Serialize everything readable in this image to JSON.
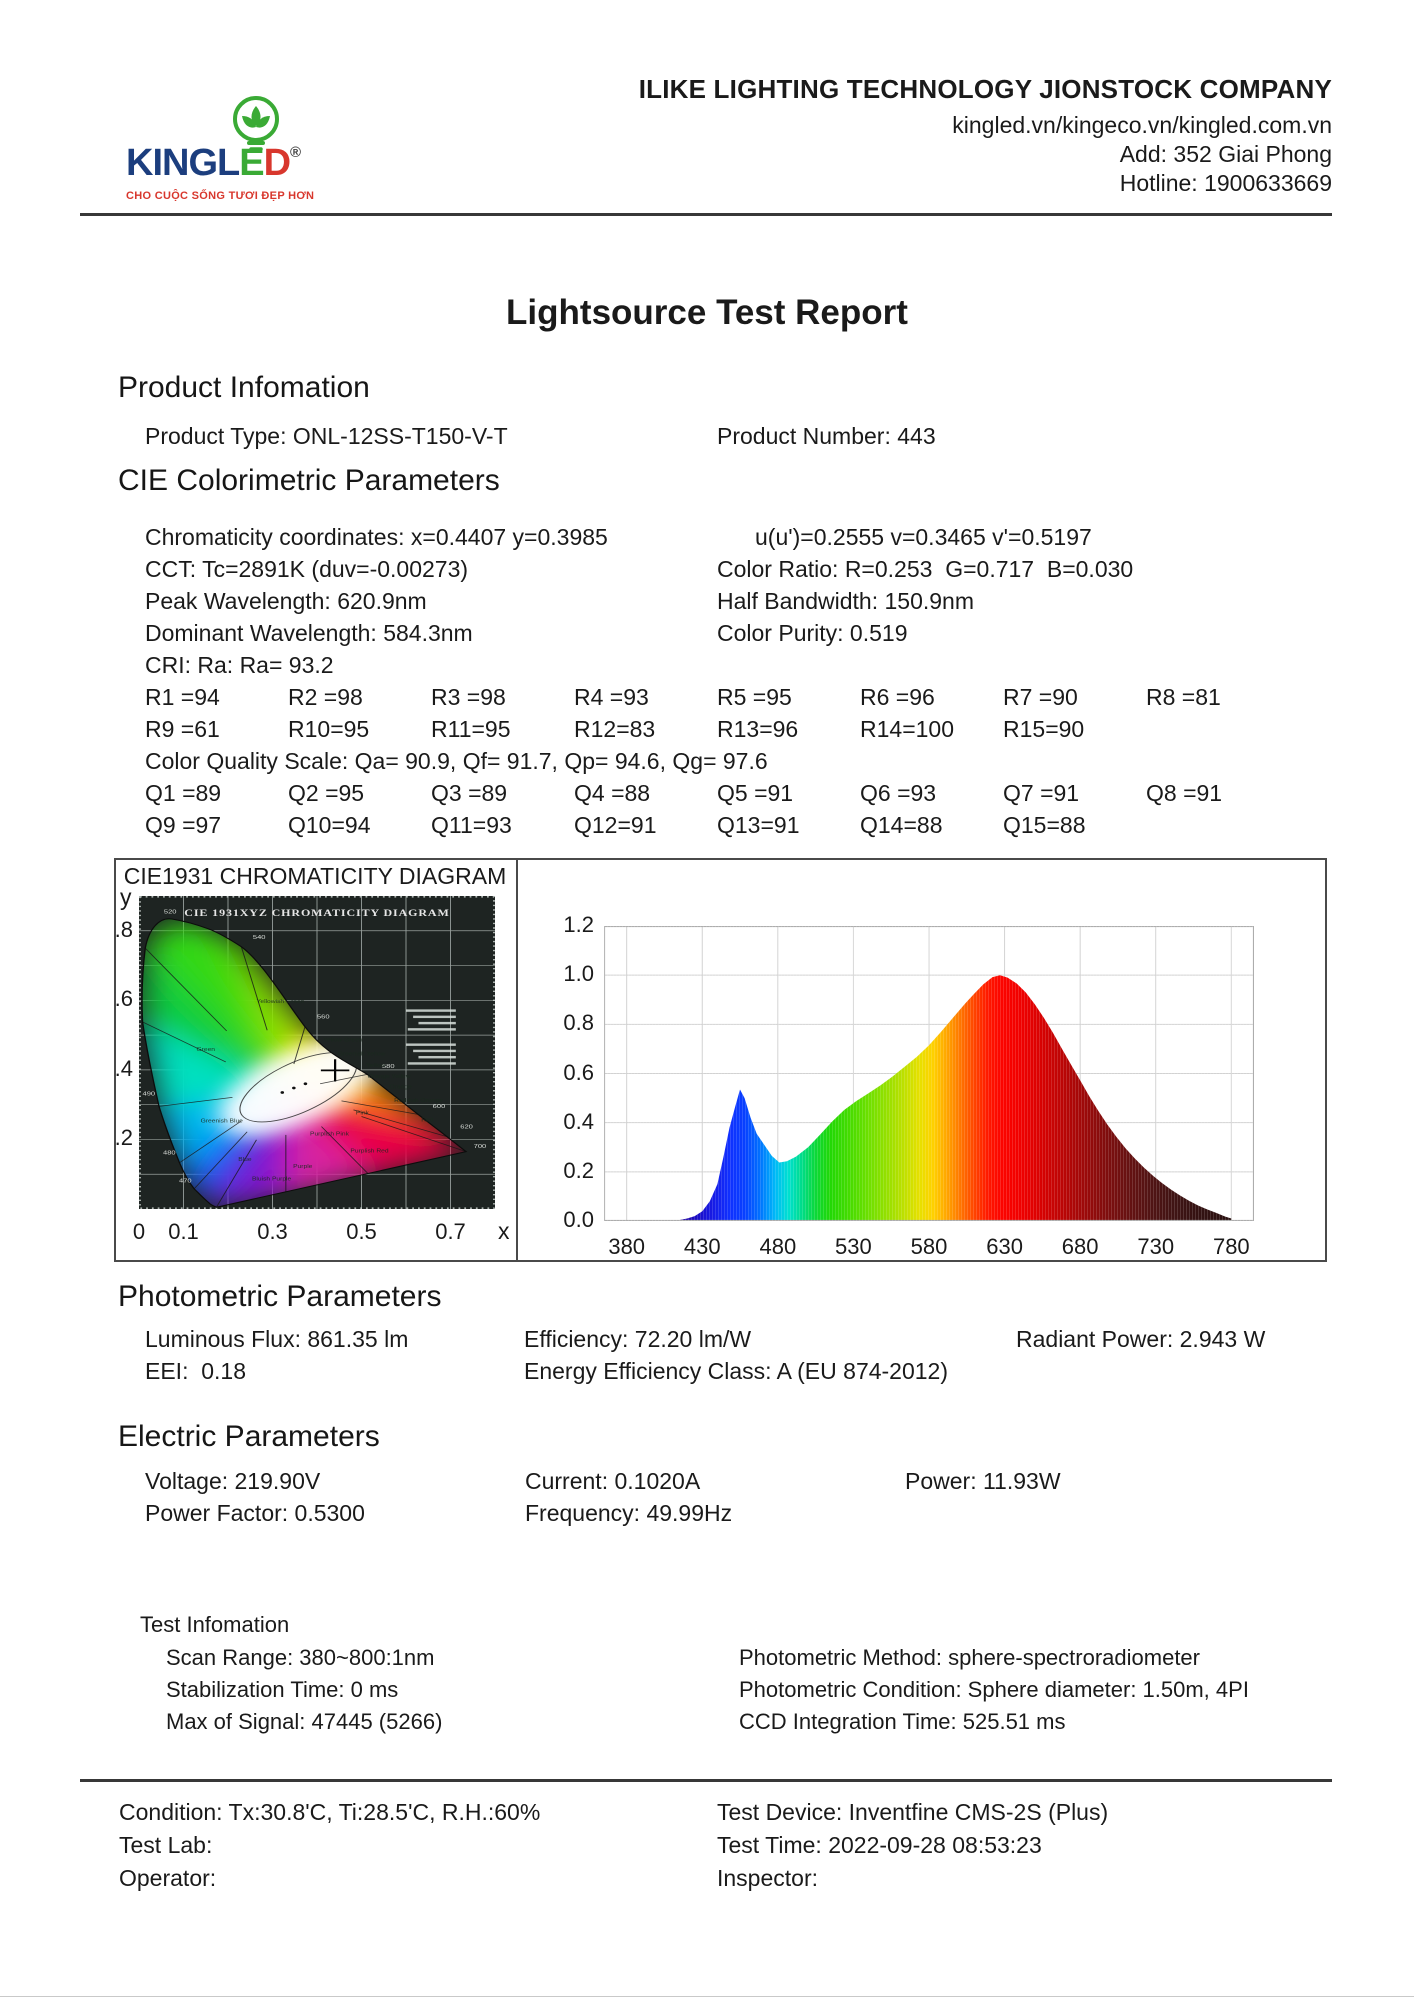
{
  "header": {
    "company_name": "ILIKE LIGHTING TECHNOLOGY JIONSTOCK COMPANY",
    "website": "kingled.vn/kingeco.vn/kingled.com.vn",
    "address": "Add: 352 Giai Phong",
    "hotline": "Hotline: 1900633669",
    "logo": {
      "wordmark_prefix": "KINGL",
      "wordmark_e": "E",
      "wordmark_d": "D",
      "registered_mark": "®",
      "tagline": "CHO CUỘC SỐNG TƯƠI ĐẸP HƠN",
      "brand_colors": {
        "navy": "#1c3e7e",
        "green": "#3aaa35",
        "red": "#d8372d"
      }
    }
  },
  "title": "Lightsource Test Report",
  "product": {
    "heading": "Product Infomation",
    "type": "Product Type: ONL-12SS-T150-V-T",
    "number": "Product Number: 443"
  },
  "cie_params": {
    "heading": "CIE Colorimetric Parameters",
    "chromaticity_left": "Chromaticity coordinates: x=0.4407 y=0.3985",
    "chromaticity_right": "u(u')=0.2555 v=0.3465 v'=0.5197",
    "cct": "CCT: Tc=2891K (duv=-0.00273)",
    "color_ratio": "Color Ratio: R=0.253  G=0.717  B=0.030",
    "peak_wavelength": "Peak Wavelength: 620.9nm",
    "half_bandwidth": "Half Bandwidth: 150.9nm",
    "dominant_wavelength": "Dominant Wavelength: 584.3nm",
    "color_purity": "Color Purity: 0.519",
    "cri": "CRI: Ra: Ra= 93.2",
    "r_row1": [
      "R1 =94",
      "R2 =98",
      "R3 =98",
      "R4 =93",
      "R5 =95",
      "R6 =96",
      "R7 =90",
      "R8 =81"
    ],
    "r_row2": [
      "R9 =61",
      "R10=95",
      "R11=95",
      "R12=83",
      "R13=96",
      "R14=100",
      "R15=90"
    ],
    "cqs": "Color Quality Scale: Qa= 90.9, Qf= 91.7, Qp= 94.6, Qg= 97.6",
    "q_row1": [
      "Q1 =89",
      "Q2 =95",
      "Q3 =89",
      "Q4 =88",
      "Q5 =91",
      "Q6 =93",
      "Q7 =91",
      "Q8 =91"
    ],
    "q_row2": [
      "Q9 =97",
      "Q10=94",
      "Q11=93",
      "Q12=91",
      "Q13=91",
      "Q14=88",
      "Q15=88"
    ]
  },
  "photometric": {
    "heading": "Photometric Parameters",
    "luminous_flux": "Luminous Flux: 861.35 lm",
    "efficiency": "Efficiency: 72.20 lm/W",
    "radiant_power": "Radiant Power: 2.943 W",
    "eei": "EEI:  0.18",
    "energy_class": "Energy Efficiency Class: A (EU 874-2012)"
  },
  "electric": {
    "heading": "Electric Parameters",
    "voltage": "Voltage: 219.90V",
    "current": "Current: 0.1020A",
    "power": "Power: 11.93W",
    "power_factor": "Power Factor: 0.5300",
    "frequency": "Frequency: 49.99Hz"
  },
  "test_info": {
    "heading": "Test Infomation",
    "scan_range": "Scan Range: 380~800:1nm",
    "stabilization": "Stabilization Time: 0 ms",
    "max_signal": "Max of Signal: 47445 (5266)",
    "method": "Photometric Method: sphere-spectroradiometer",
    "condition": "Photometric Condition: Sphere diameter: 1.50m, 4PI",
    "ccd": "CCD Integration Time: 525.51 ms"
  },
  "footer": {
    "condition": "Condition: Tx:30.8'C, Ti:28.5'C, R.H.:60%",
    "test_lab": "Test Lab:",
    "operator": "Operator:",
    "test_device": "Test Device: Inventfine CMS-2S (Plus)",
    "test_time": "Test Time: 2022-09-28 08:53:23",
    "inspector": "Inspector:"
  },
  "chart_data": [
    {
      "type": "scatter",
      "name": "cie1931_chromaticity_diagram",
      "title": "CIE1931 CHROMATICITY DIAGRAM",
      "inner_title": "CIE 1931XYZ CHROMATICITY DIAGRAM",
      "xlabel": "x",
      "ylabel": "y",
      "x_ticks": [
        "0",
        "0.1",
        "0.3",
        "0.5",
        "0.7"
      ],
      "y_ticks": [
        ".8",
        ".6",
        ".4",
        ".2"
      ],
      "xlim": [
        0,
        0.8
      ],
      "ylim": [
        0,
        0.9
      ],
      "point": {
        "x": 0.4407,
        "y": 0.3985
      },
      "locus_labels": [
        "520",
        "540",
        "560",
        "580",
        "600",
        "620",
        "700",
        "490",
        "480",
        "470"
      ],
      "region_labels": [
        "Green",
        "Yellowish Green",
        "Yellow Green",
        "Greenish Yellow",
        "Yellow",
        "Orange Yellow",
        "Orange",
        "Reddish Orange",
        "Red",
        "Pink",
        "Purplish Pink",
        "Purplish Red",
        "Purple",
        "Bluish Purple",
        "Blue",
        "Greenish Blue"
      ]
    },
    {
      "type": "area",
      "name": "spectral_power_distribution",
      "title": "",
      "xlabel": "",
      "ylabel": "",
      "x_ticks": [
        380,
        430,
        480,
        530,
        580,
        630,
        680,
        730,
        780
      ],
      "y_ticks": [
        "1.2",
        "1.0",
        "0.8",
        "0.6",
        "0.4",
        "0.2",
        "0.0"
      ],
      "xlim": [
        365,
        795
      ],
      "ylim": [
        0,
        1.2
      ],
      "grid": true,
      "spd": {
        "wavelengths": [
          415,
          420,
          425,
          430,
          435,
          440,
          444,
          448,
          452,
          455,
          458,
          462,
          466,
          471,
          476,
          481,
          486,
          492,
          500,
          508,
          516,
          524,
          532,
          540,
          548,
          556,
          564,
          572,
          580,
          588,
          596,
          604,
          610,
          616,
          622,
          627,
          632,
          638,
          644,
          650,
          656,
          662,
          668,
          674,
          680,
          686,
          692,
          698,
          704,
          710,
          716,
          722,
          728,
          734,
          740,
          746,
          752,
          758,
          764,
          770,
          776,
          780
        ],
        "values": [
          0.004,
          0.01,
          0.02,
          0.04,
          0.08,
          0.15,
          0.26,
          0.38,
          0.47,
          0.535,
          0.5,
          0.42,
          0.355,
          0.31,
          0.265,
          0.238,
          0.243,
          0.262,
          0.3,
          0.352,
          0.405,
          0.452,
          0.488,
          0.52,
          0.552,
          0.588,
          0.628,
          0.668,
          0.715,
          0.77,
          0.828,
          0.885,
          0.925,
          0.963,
          0.992,
          1.0,
          0.99,
          0.966,
          0.93,
          0.882,
          0.826,
          0.765,
          0.7,
          0.636,
          0.572,
          0.508,
          0.448,
          0.392,
          0.342,
          0.296,
          0.255,
          0.218,
          0.185,
          0.155,
          0.128,
          0.104,
          0.082,
          0.063,
          0.047,
          0.033,
          0.018,
          0.01
        ]
      },
      "spectrum_gradient": [
        {
          "wl": 415,
          "c": "#2000a0"
        },
        {
          "wl": 435,
          "c": "#1818e0"
        },
        {
          "wl": 448,
          "c": "#1030ff"
        },
        {
          "wl": 458,
          "c": "#0840ff"
        },
        {
          "wl": 468,
          "c": "#0070ff"
        },
        {
          "wl": 478,
          "c": "#00b8f8"
        },
        {
          "wl": 487,
          "c": "#00e0d0"
        },
        {
          "wl": 496,
          "c": "#00dc88"
        },
        {
          "wl": 505,
          "c": "#0cd838"
        },
        {
          "wl": 515,
          "c": "#22d804"
        },
        {
          "wl": 528,
          "c": "#48dc00"
        },
        {
          "wl": 542,
          "c": "#74e000"
        },
        {
          "wl": 554,
          "c": "#9ce000"
        },
        {
          "wl": 564,
          "c": "#c0e000"
        },
        {
          "wl": 574,
          "c": "#e8e000"
        },
        {
          "wl": 583,
          "c": "#ffd000"
        },
        {
          "wl": 592,
          "c": "#ffa400"
        },
        {
          "wl": 601,
          "c": "#ff7400"
        },
        {
          "wl": 610,
          "c": "#ff4400"
        },
        {
          "wl": 619,
          "c": "#ff1800"
        },
        {
          "wl": 628,
          "c": "#fc0400"
        },
        {
          "wl": 642,
          "c": "#ee0000"
        },
        {
          "wl": 656,
          "c": "#d40202"
        },
        {
          "wl": 670,
          "c": "#b80606"
        },
        {
          "wl": 684,
          "c": "#9a0a0a"
        },
        {
          "wl": 698,
          "c": "#7e0e0e"
        },
        {
          "wl": 712,
          "c": "#661212"
        },
        {
          "wl": 726,
          "c": "#521414"
        },
        {
          "wl": 742,
          "c": "#401414"
        },
        {
          "wl": 758,
          "c": "#341212"
        },
        {
          "wl": 780,
          "c": "#281010"
        }
      ]
    }
  ]
}
